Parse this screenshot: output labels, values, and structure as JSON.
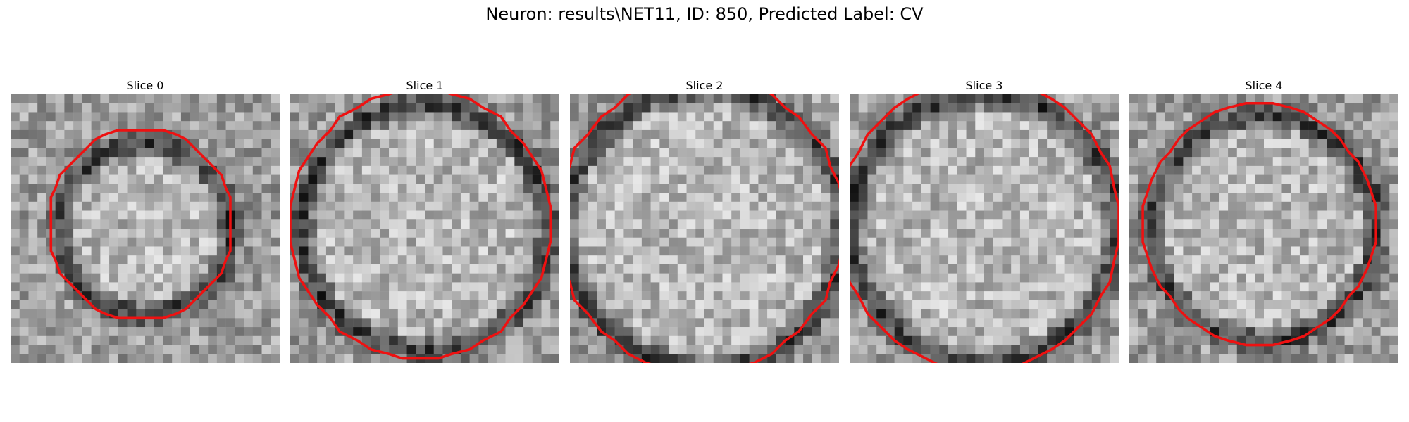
{
  "figure": {
    "title": "Neuron: results\\NET11, ID: 850, Predicted Label: CV"
  },
  "panels": [
    {
      "title": "Slice 0",
      "seed": 11,
      "ring_radius": 0.32,
      "contour_radius": 0.34
    },
    {
      "title": "Slice 1",
      "seed": 23,
      "ring_radius": 0.46,
      "contour_radius": 0.48
    },
    {
      "title": "Slice 2",
      "seed": 37,
      "ring_radius": 0.52,
      "contour_radius": 0.53
    },
    {
      "title": "Slice 3",
      "seed": 51,
      "ring_radius": 0.5,
      "contour_radius": 0.52
    },
    {
      "title": "Slice 4",
      "seed": 67,
      "ring_radius": 0.42,
      "contour_radius": 0.43
    }
  ],
  "colors": {
    "contour": "#ee1111",
    "background": "#ffffff"
  }
}
